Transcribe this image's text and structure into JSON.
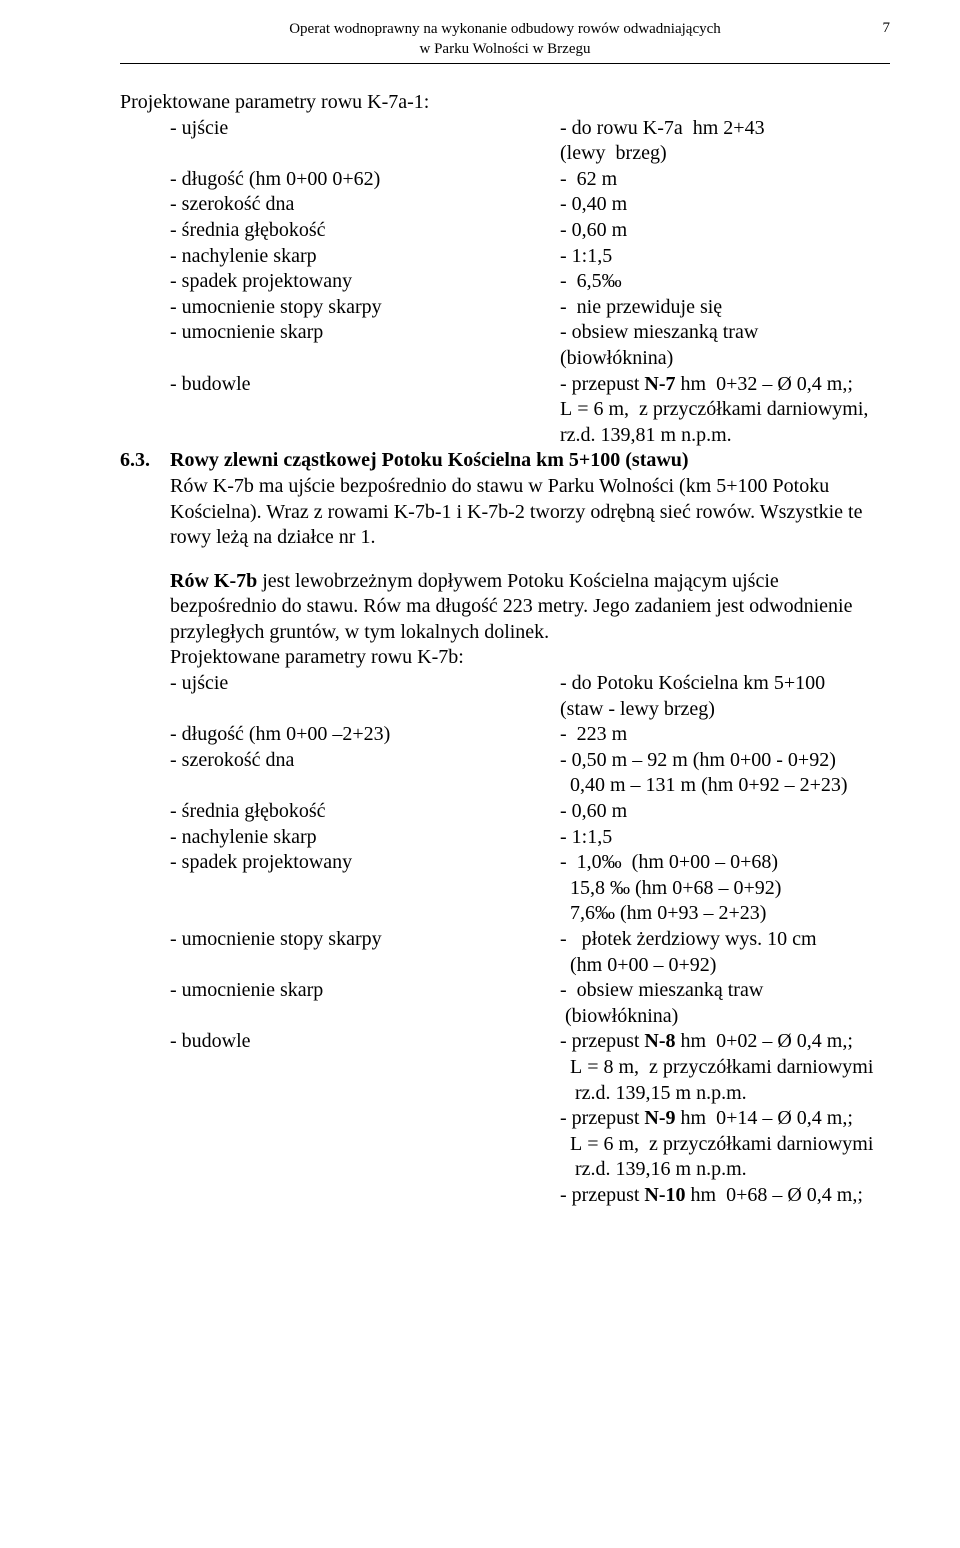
{
  "header": {
    "line1": "Operat wodnoprawny  na wykonanie odbudowy rowów odwadniających",
    "line2": "w Parku Wolności w Brzegu",
    "page_number": "7"
  },
  "intro1": "Projektowane parametry rowu K-7a-1:",
  "rows1": [
    {
      "l": "-  ujście",
      "r": "- do rowu K-7a  hm 2+43"
    },
    {
      "l": "",
      "r": "(lewy  brzeg)"
    },
    {
      "l": "-  długość (hm 0+00 0+62)",
      "r": "-  62 m"
    },
    {
      "l": "-  szerokość dna",
      "r": "- 0,40 m"
    },
    {
      "l": "-  średnia głębokość",
      "r": "- 0,60 m"
    },
    {
      "l": "-  nachylenie skarp",
      "r": "- 1:1,5"
    },
    {
      "l": "-  spadek projektowany",
      "r": "-  6,5‰"
    },
    {
      "l": "-  umocnienie stopy skarpy",
      "r": "-  nie przewiduje się"
    },
    {
      "l": "-  umocnienie skarp",
      "r": "- obsiew mieszanką traw"
    },
    {
      "l": "",
      "r": "(biowłóknina)"
    },
    {
      "l": "-  budowle",
      "r": "- przepust N-7 hm  0+32 – Ø 0,4 m,;"
    },
    {
      "l": "",
      "r": "L = 6 m,  z przyczółkami darniowymi,"
    },
    {
      "l": "",
      "r": "rz.d. 139,81 m n.p.m."
    }
  ],
  "section": {
    "num": "6.3.",
    "title": "Rowy zlewni cząstkowej  Potoku Kościelna km 5+100 (stawu)"
  },
  "para_after_section": "Rów K-7b ma ujście bezpośrednio do stawu w Parku Wolności (km 5+100 Potoku Kościelna). Wraz z rowami K-7b-1 i K-7b-2 tworzy odrębną sieć rowów. Wszystkie te rowy leżą na działce nr 1.",
  "para_k7b_1a": "Rów K-7b",
  "para_k7b_1b": " jest lewobrzeżnym dopływem Potoku Kościelna mającym ujście bezpośrednio do stawu. Rów ma długość 223 metry. Jego zadaniem jest odwodnienie przyległych gruntów, w tym lokalnych dolinek.",
  "intro2": "Projektowane parametry rowu K-7b:",
  "rows2": [
    {
      "l": "-  ujście",
      "r": "- do Potoku Kościelna km 5+100"
    },
    {
      "l": "",
      "r": "(staw - lewy brzeg)"
    },
    {
      "l": "-  długość (hm 0+00 –2+23)",
      "r": "-  223 m"
    },
    {
      "l": "-  szerokość dna",
      "r": "- 0,50 m – 92 m (hm 0+00 - 0+92)"
    },
    {
      "l": "",
      "r": "  0,40 m – 131 m (hm 0+92 – 2+23)"
    },
    {
      "l": "-  średnia głębokość",
      "r": "- 0,60 m"
    },
    {
      "l": "-  nachylenie skarp",
      "r": "- 1:1,5"
    },
    {
      "l": "-  spadek projektowany",
      "r": "-  1,0‰  (hm 0+00 – 0+68)"
    },
    {
      "l": "",
      "r": "  15,8 ‰ (hm 0+68 – 0+92)"
    },
    {
      "l": "",
      "r": "  7,6‰ (hm 0+93 – 2+23)"
    },
    {
      "l": "-  umocnienie stopy skarpy",
      "r": "-   płotek żerdziowy wys. 10 cm"
    },
    {
      "l": "",
      "r": "  (hm 0+00 – 0+92)"
    },
    {
      "l": "-  umocnienie skarp",
      "r": "-  obsiew mieszanką traw"
    },
    {
      "l": "",
      "r": " (biowłóknina)"
    }
  ],
  "rows2_budowle_label": "-  budowle",
  "rows2_budowle": [
    "- przepust N-8 hm  0+02 – Ø 0,4 m,;",
    "  L = 8 m,  z przyczółkami darniowymi",
    "   rz.d. 139,15 m n.p.m.",
    "- przepust N-9 hm  0+14 – Ø 0,4 m,;",
    "  L = 6 m,  z przyczółkami darniowymi",
    "   rz.d. 139,16 m n.p.m.",
    "- przepust N-10 hm  0+68 – Ø 0,4 m,;"
  ],
  "bold_tokens": {
    "n7": "N-7",
    "n8": "N-8",
    "n9": "N-9",
    "n10": "N-10"
  }
}
